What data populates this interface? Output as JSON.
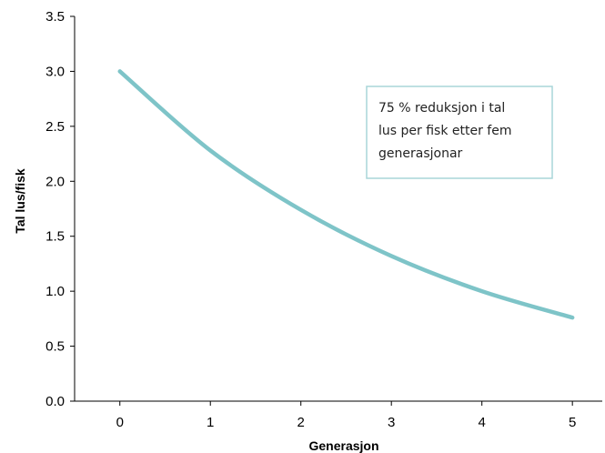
{
  "chart_data": {
    "type": "line",
    "title": "",
    "xlabel": "Generasjon",
    "ylabel": "Tal lus/fisk",
    "x": [
      0,
      1,
      2,
      3,
      4,
      5
    ],
    "x_ticks": [
      "0",
      "1",
      "2",
      "3",
      "4",
      "5"
    ],
    "y_ticks": [
      "0.0",
      "0.5",
      "1.0",
      "1.5",
      "2.0",
      "2.5",
      "3.0",
      "3.5"
    ],
    "ylim": [
      0,
      3.5
    ],
    "grid": false,
    "legend": "none",
    "series": [
      {
        "values": [
          3.0,
          2.28,
          1.74,
          1.32,
          1.0,
          0.76
        ],
        "color": "#7ec4c8"
      }
    ],
    "annotation": {
      "lines": [
        "75 % reduksjon i tal",
        "lus per fisk etter fem",
        "generasjonar"
      ],
      "border_color": "#a9d6d9"
    }
  }
}
